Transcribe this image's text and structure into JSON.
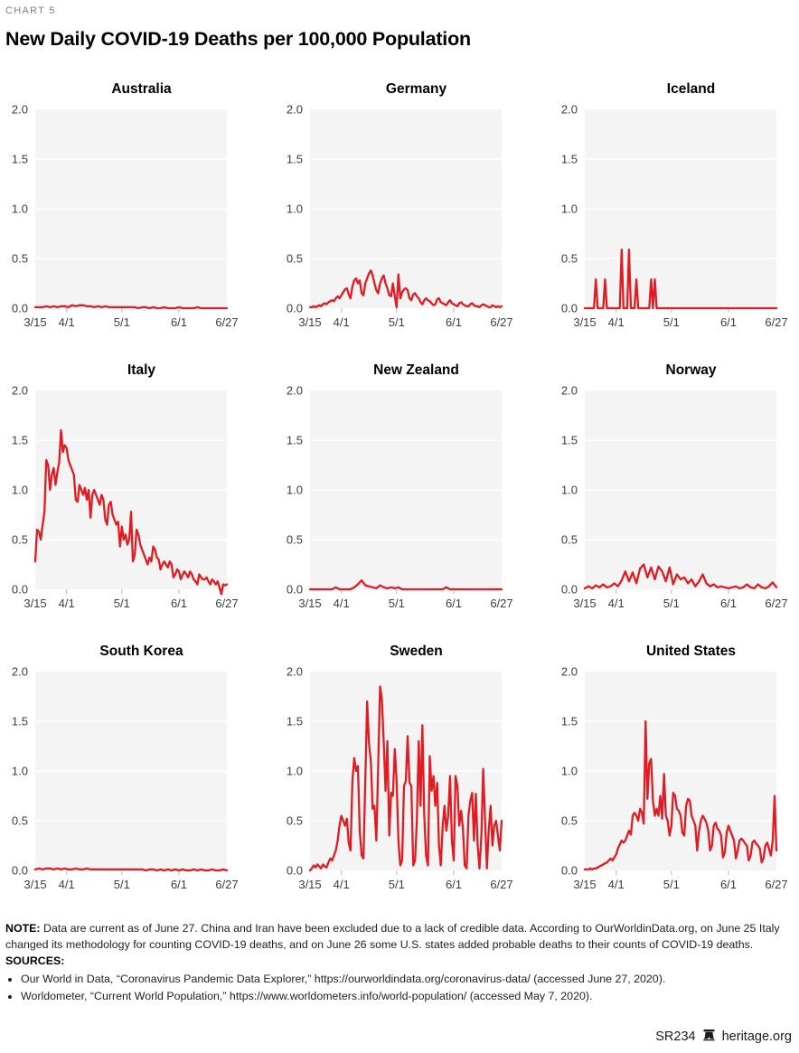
{
  "page": {
    "kicker": "CHART 5",
    "title": "New Daily COVID-19 Deaths per 100,000 Population"
  },
  "colors": {
    "line": "#e11b22",
    "plot_bg": "#f4f4f4",
    "grid": "#ffffff",
    "axis_text": "#3d3d3d",
    "tick_mark": "#c9c9c9",
    "kicker_text": "#7f7f7f"
  },
  "note": {
    "label": "NOTE:",
    "text": "Data are current as of June 27. China and Iran have been excluded due to a lack of credible data. According to OurWorldinData.org, on June 25 Italy changed its methodology for counting COVID-19 deaths, and on June 26 some U.S. states added probable deaths to their counts of COVID-19 deaths."
  },
  "sources": {
    "label": "SOURCES:",
    "items": [
      "Our World in Data, “Coronavirus Pandemic Data Explorer,” https://ourworldindata.org/coronavirus-data/ (accessed June 27, 2020).",
      "Worldometer, “Current World Population,” https://www.worldometers.info/world-population/ (accessed May 7, 2020)."
    ]
  },
  "footer": {
    "doc_id": "SR234",
    "site": "heritage.org",
    "icon": "liberty-bell"
  },
  "chart_data": {
    "type": "line",
    "title": "New Daily COVID-19 Deaths per 100,000 Population",
    "layout": "3x3 small multiples, horizontal white gridlines on light-gray panel, no legend",
    "x_axis": {
      "tick_labels": [
        "3/15",
        "4/1",
        "5/1",
        "6/1",
        "6/27"
      ],
      "tick_days": [
        0,
        17,
        47,
        78,
        104
      ],
      "minor_tick_days": [
        17,
        47,
        78
      ],
      "total_days": 104
    },
    "y_axis": {
      "tick_labels": [
        "0.0",
        "0.5",
        "1.0",
        "1.5",
        "2.0"
      ],
      "lim": [
        0,
        2
      ]
    },
    "charts": [
      {
        "title": "Australia",
        "values": [
          0.01,
          0.01,
          0.01,
          0.02,
          0.01,
          0.02,
          0.01,
          0.02,
          0.02,
          0.01,
          0.03,
          0.02,
          0.03,
          0.03,
          0.02,
          0.02,
          0.01,
          0.02,
          0.01,
          0.02,
          0.01,
          0.01,
          0.01,
          0.01,
          0.01,
          0.01,
          0.01,
          0.01,
          0,
          0.01,
          0.01,
          0,
          0.01,
          0,
          0,
          0.01,
          0,
          0,
          0,
          0.01,
          0,
          0,
          0,
          0,
          0.01,
          0,
          0,
          0,
          0,
          0,
          0,
          0,
          0
        ]
      },
      {
        "title": "Germany",
        "values": [
          0.01,
          0.01,
          0.02,
          0.01,
          0.02,
          0.03,
          0.02,
          0.04,
          0.05,
          0.04,
          0.06,
          0.07,
          0.08,
          0.07,
          0.1,
          0.12,
          0.1,
          0.13,
          0.16,
          0.19,
          0.2,
          0.14,
          0.1,
          0.22,
          0.28,
          0.3,
          0.25,
          0.28,
          0.15,
          0.13,
          0.25,
          0.3,
          0.35,
          0.38,
          0.33,
          0.25,
          0.18,
          0.15,
          0.25,
          0.3,
          0.33,
          0.25,
          0.2,
          0.13,
          0.12,
          0.25,
          0.12,
          0.01,
          0.34,
          0.1,
          0.16,
          0.19,
          0.2,
          0.18,
          0.1,
          0.08,
          0.14,
          0.15,
          0.12,
          0.1,
          0.06,
          0.04,
          0.08,
          0.1,
          0.08,
          0.07,
          0.05,
          0.03,
          0.04,
          0.09,
          0.1,
          0.06,
          0.05,
          0.04,
          0.03,
          0.06,
          0.08,
          0.05,
          0.04,
          0.03,
          0.02,
          0.05,
          0.06,
          0.04,
          0.03,
          0.02,
          0.02,
          0.04,
          0.05,
          0.03,
          0.02,
          0.02,
          0.01,
          0.03,
          0.04,
          0.03,
          0.02,
          0.01,
          0.01,
          0.03,
          0.02,
          0.01,
          0.02,
          0.01,
          0.02
        ]
      },
      {
        "title": "Iceland",
        "values": [
          0,
          0,
          0,
          0,
          0,
          0,
          0.29,
          0,
          0,
          0,
          0,
          0.29,
          0,
          0,
          0,
          0,
          0,
          0,
          0,
          0,
          0.59,
          0,
          0,
          0,
          0.59,
          0,
          0,
          0,
          0.29,
          0,
          0,
          0,
          0,
          0,
          0,
          0,
          0.29,
          0,
          0.29,
          0,
          0,
          0,
          0,
          0,
          0,
          0,
          0,
          0,
          0,
          0,
          0,
          0,
          0,
          0,
          0,
          0,
          0,
          0,
          0,
          0,
          0,
          0,
          0,
          0,
          0,
          0,
          0,
          0,
          0,
          0,
          0,
          0,
          0,
          0,
          0,
          0,
          0,
          0,
          0,
          0,
          0,
          0,
          0,
          0,
          0,
          0,
          0,
          0,
          0,
          0,
          0,
          0,
          0,
          0,
          0,
          0,
          0,
          0,
          0,
          0,
          0,
          0,
          0,
          0,
          0
        ]
      },
      {
        "title": "Italy",
        "values": [
          0.28,
          0.6,
          0.58,
          0.5,
          0.65,
          0.78,
          1.3,
          1.25,
          1.0,
          1.15,
          1.22,
          1.05,
          1.18,
          1.28,
          1.6,
          1.38,
          1.45,
          1.42,
          1.3,
          1.25,
          1.2,
          1.15,
          0.9,
          0.88,
          1.05,
          1.0,
          0.95,
          1.02,
          0.9,
          1.0,
          0.72,
          0.95,
          1.0,
          0.95,
          0.9,
          0.85,
          0.95,
          0.9,
          0.7,
          0.65,
          0.85,
          0.88,
          0.75,
          0.7,
          0.65,
          0.68,
          0.43,
          0.63,
          0.5,
          0.55,
          0.45,
          0.5,
          0.78,
          0.28,
          0.35,
          0.6,
          0.55,
          0.45,
          0.4,
          0.35,
          0.3,
          0.25,
          0.32,
          0.28,
          0.43,
          0.4,
          0.32,
          0.3,
          0.2,
          0.25,
          0.28,
          0.25,
          0.22,
          0.28,
          0.25,
          0.12,
          0.15,
          0.2,
          0.18,
          0.1,
          0.15,
          0.18,
          0.15,
          0.12,
          0.18,
          0.15,
          0.1,
          0.08,
          0.05,
          0.15,
          0.12,
          0.1,
          0.1,
          0.12,
          0.08,
          0.05,
          0.1,
          0.08,
          0.05,
          0.08,
          0.02,
          -0.05,
          0.05,
          0.04,
          0.05
        ]
      },
      {
        "title": "New Zealand",
        "values": [
          0,
          0,
          0,
          0,
          0,
          0,
          0,
          0.02,
          0,
          0,
          0,
          0,
          0.02,
          0.05,
          0.09,
          0.04,
          0.03,
          0.02,
          0.01,
          0.04,
          0.02,
          0.01,
          0.02,
          0.01,
          0.02,
          0,
          0,
          0,
          0,
          0,
          0,
          0,
          0,
          0,
          0,
          0,
          0,
          0.02,
          0,
          0,
          0,
          0,
          0,
          0,
          0,
          0,
          0,
          0,
          0,
          0,
          0,
          0,
          0
        ]
      },
      {
        "title": "Norway",
        "values": [
          0.01,
          0.03,
          0.01,
          0.04,
          0.02,
          0.05,
          0.02,
          0.03,
          0.06,
          0.03,
          0.09,
          0.18,
          0.08,
          0.17,
          0.06,
          0.21,
          0.25,
          0.12,
          0.22,
          0.1,
          0.23,
          0.18,
          0.08,
          0.22,
          0.05,
          0.15,
          0.1,
          0.12,
          0.06,
          0.1,
          0.03,
          0.08,
          0.15,
          0.06,
          0.03,
          0.05,
          0.02,
          0.03,
          0.02,
          0.01,
          0.02,
          0.03,
          0.01,
          0.02,
          0.05,
          0.02,
          0.01,
          0.05,
          0.02,
          0.01,
          0.03,
          0.07,
          0.02
        ]
      },
      {
        "title": "South Korea",
        "values": [
          0.01,
          0.02,
          0.01,
          0.02,
          0.02,
          0.01,
          0.02,
          0.01,
          0.02,
          0.01,
          0.01,
          0.02,
          0.01,
          0.01,
          0.02,
          0.01,
          0.01,
          0.01,
          0.01,
          0.01,
          0.01,
          0.01,
          0.01,
          0.01,
          0.01,
          0.01,
          0.01,
          0.01,
          0.01,
          0.01,
          0,
          0.01,
          0.01,
          0,
          0.01,
          0,
          0.01,
          0,
          0.01,
          0,
          0.01,
          0,
          0,
          0.01,
          0,
          0.01,
          0,
          0,
          0.01,
          0,
          0,
          0.01,
          0
        ]
      },
      {
        "title": "Sweden",
        "values": [
          0,
          0.02,
          0.05,
          0.03,
          0.06,
          0.04,
          0.02,
          0.06,
          0.04,
          0.03,
          0.08,
          0.12,
          0.1,
          0.15,
          0.2,
          0.3,
          0.45,
          0.55,
          0.5,
          0.45,
          0.52,
          0.28,
          0.2,
          0.9,
          1.13,
          1.0,
          1.05,
          0.4,
          0.15,
          0.12,
          0.92,
          1.7,
          1.28,
          1.1,
          0.62,
          0.65,
          0.3,
          1.05,
          1.85,
          1.72,
          1.3,
          0.8,
          1.3,
          0.35,
          0.78,
          0.75,
          1.22,
          0.9,
          0.3,
          0.05,
          0.1,
          0.85,
          0.9,
          1.35,
          0.88,
          0.85,
          0.05,
          0.1,
          0.5,
          1.3,
          0.65,
          1.46,
          0.55,
          0.15,
          0.05,
          1.15,
          0.8,
          0.95,
          0.65,
          0.88,
          0.25,
          0.05,
          0.45,
          0.65,
          0.4,
          0.55,
          0.95,
          0.3,
          0.1,
          0.95,
          0.85,
          0.45,
          0.6,
          0.42,
          0.05,
          0.02,
          0.55,
          0.7,
          0.78,
          0.3,
          0.77,
          0.25,
          0.02,
          0.35,
          1.02,
          0.5,
          0.02,
          0.4,
          0.65,
          0.25,
          0.45,
          0.5,
          0.35,
          0.2,
          0.5
        ]
      },
      {
        "title": "United States",
        "values": [
          0.01,
          0.01,
          0.01,
          0.02,
          0.01,
          0.02,
          0.02,
          0.03,
          0.04,
          0.05,
          0.06,
          0.07,
          0.08,
          0.1,
          0.12,
          0.1,
          0.13,
          0.16,
          0.22,
          0.26,
          0.3,
          0.28,
          0.3,
          0.35,
          0.4,
          0.36,
          0.55,
          0.58,
          0.55,
          0.5,
          0.62,
          0.58,
          0.47,
          1.5,
          0.72,
          1.08,
          1.12,
          0.7,
          0.55,
          0.62,
          0.55,
          0.75,
          0.52,
          0.97,
          0.55,
          0.5,
          0.35,
          0.45,
          0.78,
          0.75,
          0.62,
          0.6,
          0.55,
          0.38,
          0.35,
          0.65,
          0.72,
          0.7,
          0.55,
          0.5,
          0.45,
          0.2,
          0.4,
          0.5,
          0.55,
          0.52,
          0.48,
          0.4,
          0.2,
          0.25,
          0.45,
          0.48,
          0.42,
          0.4,
          0.35,
          0.13,
          0.18,
          0.38,
          0.45,
          0.4,
          0.35,
          0.3,
          0.12,
          0.2,
          0.3,
          0.32,
          0.3,
          0.27,
          0.25,
          0.1,
          0.15,
          0.28,
          0.3,
          0.27,
          0.25,
          0.22,
          0.08,
          0.12,
          0.25,
          0.28,
          0.22,
          0.15,
          0.3,
          0.75,
          0.2
        ]
      }
    ]
  }
}
